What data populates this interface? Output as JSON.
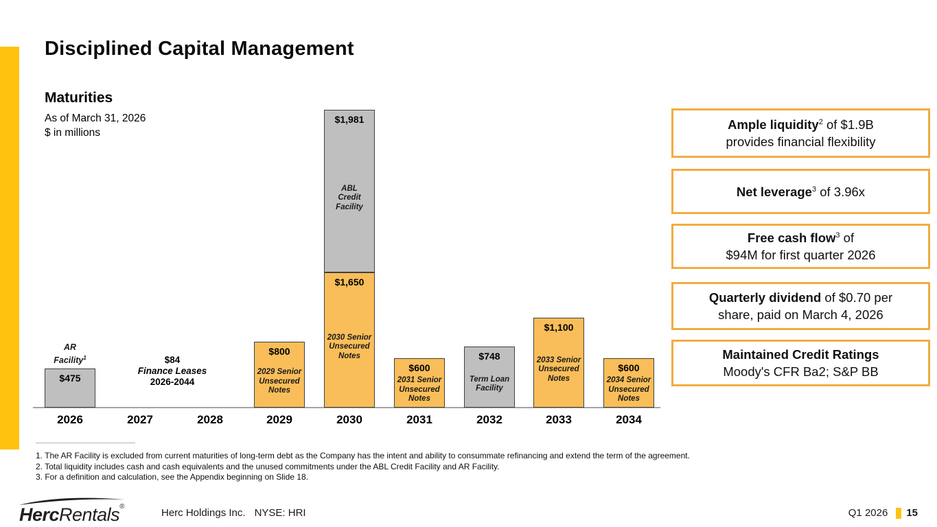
{
  "slide_title": "Disciplined Capital Management",
  "chart_header": {
    "title": "Maturities",
    "as_of": "As of March 31, 2026",
    "units": "$ in millions"
  },
  "chart_data": {
    "type": "bar",
    "title": "Maturities",
    "as_of": "As of March 31, 2026",
    "units": "$ in millions",
    "categories": [
      "2026",
      "2027",
      "2028",
      "2029",
      "2030",
      "2031",
      "2032",
      "2033",
      "2034"
    ],
    "grid": false,
    "ylim": [
      0,
      3631
    ],
    "bars": [
      {
        "year": "2026",
        "above_label_lines": [
          "AR",
          "Facility"
        ],
        "above_sup": "1",
        "segments": [
          {
            "value": 475,
            "display": "$475",
            "color": "gray",
            "label": ""
          }
        ]
      },
      {
        "year": "2027",
        "segments": []
      },
      {
        "year": "2028",
        "segments": []
      },
      {
        "year": "2029",
        "segments": [
          {
            "value": 800,
            "display": "$800",
            "color": "amber",
            "label": "2029 Senior\nUnsecured\nNotes"
          }
        ]
      },
      {
        "year": "2030",
        "segments": [
          {
            "value": 1650,
            "display": "$1,650",
            "color": "amber",
            "label": "2030 Senior\nUnsecured\nNotes"
          },
          {
            "value": 1981,
            "display": "$1,981",
            "color": "gray",
            "label": "ABL\nCredit\nFacility"
          }
        ]
      },
      {
        "year": "2031",
        "segments": [
          {
            "value": 600,
            "display": "$600",
            "color": "amber",
            "label": "2031 Senior\nUnsecured\nNotes"
          }
        ]
      },
      {
        "year": "2032",
        "segments": [
          {
            "value": 748,
            "display": "$748",
            "color": "gray",
            "label": "Term Loan\nFacility"
          }
        ]
      },
      {
        "year": "2033",
        "segments": [
          {
            "value": 1100,
            "display": "$1,100",
            "color": "amber",
            "label": "2033 Senior\nUnsecured\nNotes"
          }
        ]
      },
      {
        "year": "2034",
        "segments": [
          {
            "value": 600,
            "display": "$600",
            "color": "amber",
            "label": "2034 Senior\nUnsecured\nNotes"
          }
        ]
      }
    ],
    "annotation": {
      "lines": [
        "$84",
        "Finance Leases",
        "2026-2044"
      ],
      "between": [
        "2027",
        "2028"
      ]
    }
  },
  "callouts": [
    {
      "bold": "Ample liquidity",
      "sup": "2",
      "rest": " of $1.9B",
      "line2": "provides financial flexibility"
    },
    {
      "bold": "Net leverage",
      "sup": "3",
      "rest": " of 3.96x",
      "line2": ""
    },
    {
      "bold": "Free cash flow",
      "sup": "3",
      "rest": " of",
      "line2": "$94M for first quarter 2026"
    },
    {
      "bold": "Quarterly dividend",
      "sup": "",
      "rest": " of $0.70 per",
      "line2": "share, paid on March 4, 2026"
    },
    {
      "bold": "Maintained Credit Ratings",
      "sup": "",
      "rest": "",
      "line2": "Moody's CFR Ba2; S&P BB"
    }
  ],
  "footnotes": [
    "1. The AR Facility is excluded from current maturities of long-term debt as the Company has the intent and ability to consummate refinancing and extend the term of the agreement.",
    "2. Total liquidity includes cash and cash equivalents and the unused commitments under the ABL Credit Facility and AR Facility.",
    "3. For a definition and calculation, see the Appendix beginning on Slide 18."
  ],
  "footer": {
    "logo_bold": "Herc",
    "logo_light": "Rentals",
    "logo_reg": "®",
    "company": "Herc Holdings Inc.",
    "ticker": "NYSE: HRI",
    "period": "Q1 2026",
    "page": "15"
  },
  "colors": {
    "accent_yellow": "#FFC20E",
    "bar_amber": "#F9BE59",
    "bar_gray": "#BFBFBF",
    "bar_border": "#404040",
    "box_border": "#F2AC41",
    "axis_gray": "#A3A3A3"
  }
}
